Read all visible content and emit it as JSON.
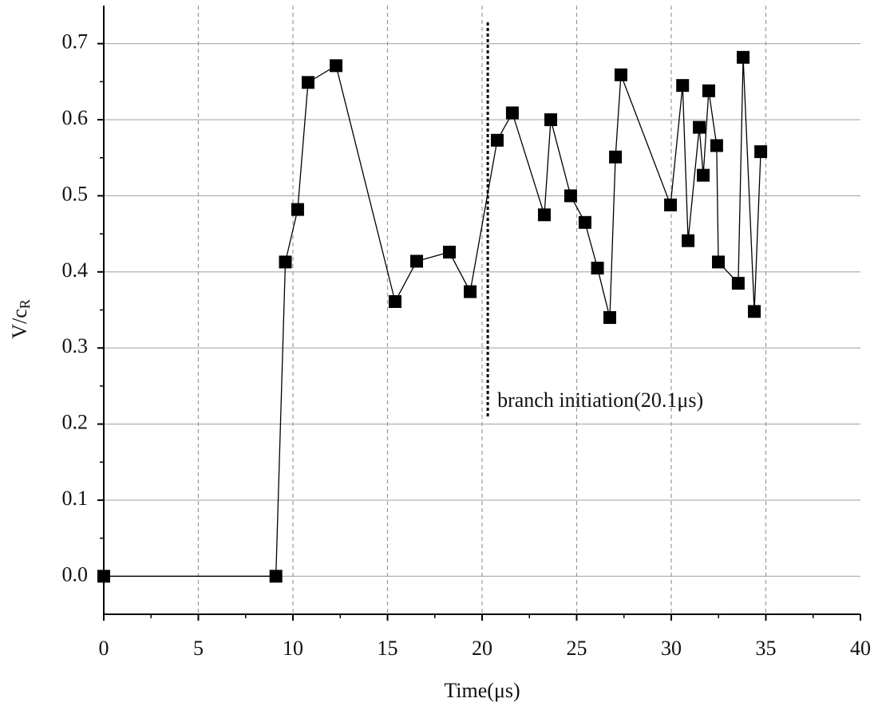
{
  "chart_data": {
    "type": "line",
    "x_label": "Time(μs)",
    "y_label": "V/c",
    "y_label_sub": "R",
    "x": [
      0,
      9.1,
      9.6,
      10.25,
      10.8,
      12.28,
      15.4,
      16.54,
      18.27,
      19.37,
      20.8,
      21.6,
      23.29,
      23.63,
      24.68,
      25.44,
      26.1,
      26.75,
      27.05,
      27.34,
      29.96,
      30.6,
      30.89,
      31.48,
      31.69,
      31.98,
      32.4,
      32.49,
      33.54,
      33.8,
      34.39,
      34.73
    ],
    "values": [
      0,
      0,
      0.413,
      0.482,
      0.649,
      0.671,
      0.361,
      0.414,
      0.426,
      0.374,
      0.573,
      0.609,
      0.475,
      0.6,
      0.5,
      0.465,
      0.405,
      0.34,
      0.551,
      0.659,
      0.488,
      0.645,
      0.441,
      0.59,
      0.527,
      0.638,
      0.566,
      0.413,
      0.385,
      0.682,
      0.348,
      0.558
    ],
    "color": "#000000",
    "xlim": [
      0,
      40
    ],
    "xticks": [
      0,
      5,
      10,
      15,
      20,
      25,
      30,
      35,
      40
    ],
    "ylim": [
      -0.05,
      0.75
    ],
    "yticks": [
      {
        "value": 0,
        "label": "0.0"
      },
      0.1,
      0.2,
      0.3,
      0.4,
      0.5,
      0.6,
      0.7
    ],
    "grid": true,
    "annotation": {
      "text": "branch initiation(20.1μs)",
      "x": 20.3,
      "y": [
        0.21,
        0.73
      ]
    }
  }
}
